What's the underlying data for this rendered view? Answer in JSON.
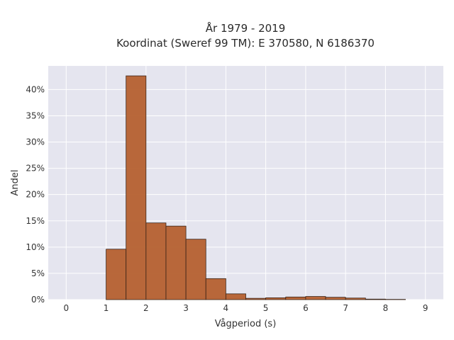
{
  "chart_data": {
    "type": "bar",
    "title_line1": "År 1979 - 2019",
    "title_line2": "Koordinat (Sweref 99 TM): E 370580, N 6186370",
    "xlabel": "Vågperiod (s)",
    "ylabel": "Andel",
    "xlim": [
      -0.45,
      9.45
    ],
    "ylim": [
      0,
      44.5
    ],
    "x_ticks": [
      0,
      1,
      2,
      3,
      4,
      5,
      6,
      7,
      8,
      9
    ],
    "x_tick_labels": [
      "0",
      "1",
      "2",
      "3",
      "4",
      "5",
      "6",
      "7",
      "8",
      "9"
    ],
    "y_ticks": [
      0,
      5,
      10,
      15,
      20,
      25,
      30,
      35,
      40
    ],
    "y_tick_labels": [
      "0%",
      "5%",
      "10%",
      "15%",
      "20%",
      "25%",
      "30%",
      "35%",
      "40%"
    ],
    "bin_width": 0.5,
    "bin_starts": [
      1.0,
      1.5,
      2.0,
      2.5,
      3.0,
      3.5,
      4.0,
      4.5,
      5.0,
      5.5,
      6.0,
      6.5,
      7.0,
      7.5,
      8.0
    ],
    "values": [
      9.6,
      42.6,
      14.6,
      14.0,
      11.5,
      4.0,
      1.1,
      0.25,
      0.35,
      0.5,
      0.6,
      0.45,
      0.3,
      0.1,
      0.05
    ],
    "grid": true,
    "colors": {
      "bar_fill": "#b5602f",
      "bar_stroke": "#3a2418",
      "plot_bg": "#e5e5ef",
      "grid": "#ffffff"
    }
  }
}
